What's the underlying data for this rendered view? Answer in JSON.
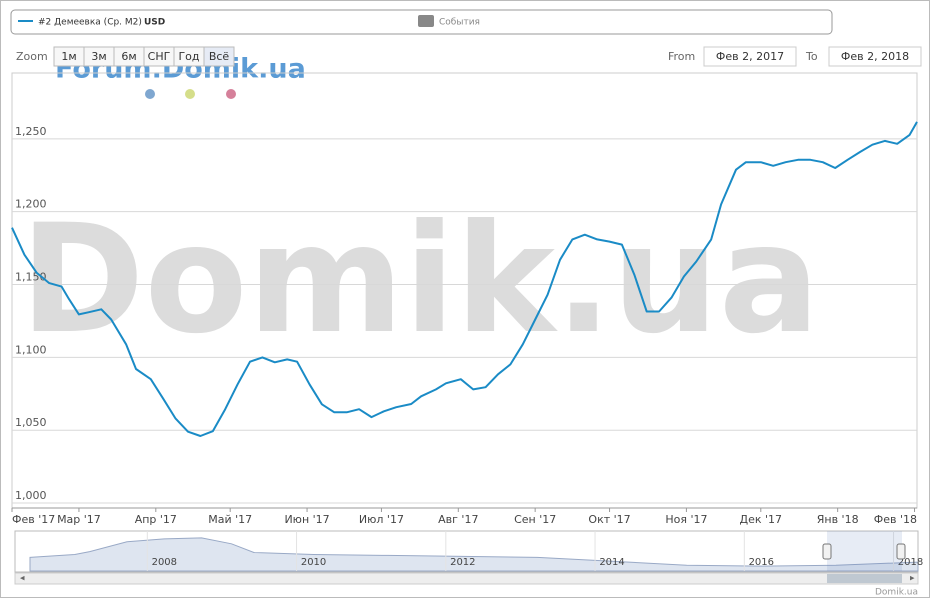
{
  "legend_unit": "USD",
  "events_label": "События",
  "range_selector": {
    "zoom_label": "Zoom",
    "buttons": [
      "1м",
      "3м",
      "6м",
      "СНГ",
      "Год",
      "Всё"
    ],
    "from_label": "From",
    "from": "Фев 2, 2017",
    "to_label": "To",
    "to": "Фев 2, 2018"
  },
  "watermarks": [
    "Forum.Domik.ua",
    "Domik.ua"
  ],
  "credit": "Domik.ua",
  "chart_data": [
    {
      "type": "line",
      "series": [
        {
          "name": "#2 Демеевка (Ср. М2)",
          "color": "#1a8bc6",
          "x": [
            0,
            5,
            10,
            15,
            20,
            23,
            27,
            31,
            36,
            40,
            46,
            50,
            56,
            61,
            66,
            71,
            76,
            81,
            86,
            91,
            96,
            101,
            106,
            111,
            115,
            120,
            125,
            130,
            135,
            140,
            145,
            150,
            155,
            161,
            165,
            171,
            175,
            181,
            186,
            191,
            196,
            201,
            206,
            211,
            216,
            221,
            226,
            231,
            236,
            241,
            246,
            251,
            256,
            261,
            266,
            271,
            276,
            282,
            286,
            292,
            296,
            302,
            307,
            312,
            317,
            322,
            327,
            332,
            337,
            342,
            347,
            352,
            357,
            362,
            365
          ],
          "values": [
            1189,
            1170.5,
            1158,
            1151,
            1148.6,
            1140,
            1129.5,
            1131,
            1133,
            1126,
            1109,
            1092,
            1085,
            1071.6,
            1058,
            1049,
            1046,
            1049.3,
            1064.4,
            1081.5,
            1097,
            1100,
            1096.6,
            1098.6,
            1097,
            1081.5,
            1067.8,
            1062.3,
            1062.3,
            1064.4,
            1059,
            1063,
            1065.8,
            1068,
            1073.3,
            1078,
            1082.2,
            1085,
            1078,
            1079.5,
            1088.4,
            1095.2,
            1109,
            1126,
            1143,
            1167,
            1181,
            1184.2,
            1181,
            1179.5,
            1177.4,
            1156.8,
            1131.5,
            1131.5,
            1141,
            1155.5,
            1165.8,
            1181,
            1205,
            1228.8,
            1234,
            1234,
            1231.5,
            1234,
            1235.6,
            1235.6,
            1234,
            1230,
            1235.6,
            1241,
            1246,
            1248.6,
            1246.6,
            1252.7,
            1261.6
          ]
        }
      ],
      "xlim": [
        0,
        365
      ],
      "xticks": [
        {
          "value": 0,
          "label": "Фев '17"
        },
        {
          "value": 27,
          "label": "Мар '17"
        },
        {
          "value": 58,
          "label": "Апр '17"
        },
        {
          "value": 88,
          "label": "Май '17"
        },
        {
          "value": 119,
          "label": "Июн '17"
        },
        {
          "value": 149,
          "label": "Июл '17"
        },
        {
          "value": 180,
          "label": "Авг '17"
        },
        {
          "value": 211,
          "label": "Сен '17"
        },
        {
          "value": 241,
          "label": "Окт '17"
        },
        {
          "value": 272,
          "label": "Ноя '17"
        },
        {
          "value": 302,
          "label": "Дек '17"
        },
        {
          "value": 333,
          "label": "Янв '18"
        },
        {
          "value": 364,
          "label": "Фев '18"
        }
      ],
      "ylim": [
        996.6,
        1295.2
      ],
      "yticks": [
        {
          "value": 1000,
          "label": "1,000"
        },
        {
          "value": 1050,
          "label": "1,050"
        },
        {
          "value": 1100,
          "label": "1,100"
        },
        {
          "value": 1150,
          "label": "1,150"
        },
        {
          "value": 1200,
          "label": "1,200"
        },
        {
          "value": 1250,
          "label": "1,250"
        }
      ],
      "grid": true
    },
    {
      "type": "area",
      "series": [
        {
          "color": "#c8d3e6",
          "x": [
            2006.2,
            2006.8,
            2007,
            2007.5,
            2008,
            2008.5,
            2008.9,
            2009.2,
            2010,
            2011,
            2012,
            2013,
            2014,
            2015,
            2016,
            2017,
            2018.1
          ],
          "values": [
            1500,
            1650,
            1800,
            2300,
            2450,
            2500,
            2200,
            1750,
            1650,
            1600,
            1550,
            1500,
            1300,
            1100,
            1050,
            1100,
            1260
          ]
        }
      ],
      "xlim": [
        2006.2,
        2018.1
      ],
      "xticks": [
        2008,
        2010,
        2012,
        2014,
        2016,
        2018
      ],
      "ylim": [
        800,
        2600
      ]
    }
  ]
}
